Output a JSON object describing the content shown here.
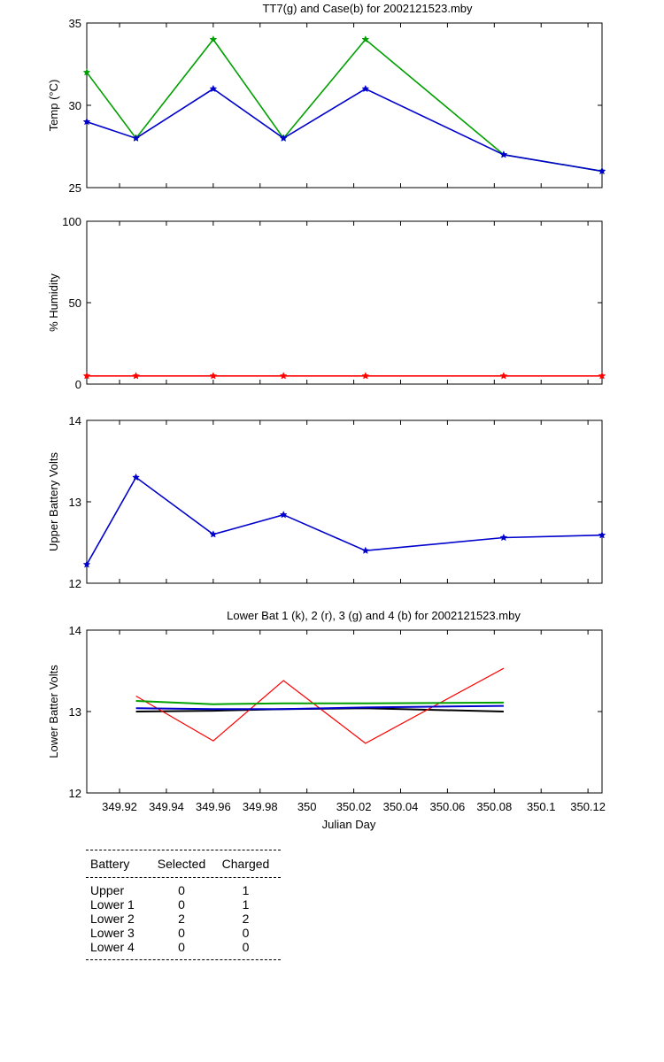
{
  "chart_data": [
    {
      "type": "line",
      "title": "TT7(g) and Case(b) for 2002121523.mby",
      "ylabel": "Temp (°C)",
      "xlim": [
        349.906,
        350.126
      ],
      "ylim": [
        25,
        35
      ],
      "yticks": [
        "25",
        "30",
        "35"
      ],
      "x": [
        349.906,
        349.927,
        349.96,
        349.99,
        350.025,
        350.084,
        350.126
      ],
      "series": [
        {
          "color": "#00a000",
          "marker": true,
          "values": [
            32,
            28,
            34,
            28,
            34,
            27,
            26
          ]
        },
        {
          "color": "#0000cc",
          "marker": true,
          "values": [
            29,
            28,
            31,
            28,
            31,
            27,
            26
          ]
        }
      ]
    },
    {
      "type": "line",
      "title": "",
      "ylabel": "% Humidity",
      "xlim": [
        349.906,
        350.126
      ],
      "ylim": [
        0,
        100
      ],
      "yticks": [
        "0",
        "50",
        "100"
      ],
      "x": [
        349.906,
        349.927,
        349.96,
        349.99,
        350.025,
        350.084,
        350.126
      ],
      "series": [
        {
          "color": "#ff0000",
          "marker": true,
          "values": [
            5,
            5,
            5,
            5,
            5,
            5,
            5
          ]
        }
      ]
    },
    {
      "type": "line",
      "title": "",
      "ylabel": "Upper Battery Volts",
      "xlim": [
        349.906,
        350.126
      ],
      "ylim": [
        12,
        14
      ],
      "yticks": [
        "12",
        "13",
        "14"
      ],
      "x": [
        349.906,
        349.927,
        349.96,
        349.99,
        350.025,
        350.084,
        350.126
      ],
      "series": [
        {
          "color": "#0000cc",
          "marker": true,
          "values": [
            12.23,
            13.3,
            12.6,
            12.84,
            12.4,
            12.56,
            12.59
          ]
        }
      ]
    },
    {
      "type": "line",
      "title": "Lower Bat 1 (k), 2 (r), 3 (g) and 4 (b) for 2002121523.mby",
      "ylabel": "Lower Batter Volts",
      "xlabel": "Julian Day",
      "xlim": [
        349.906,
        350.126
      ],
      "ylim": [
        12,
        14
      ],
      "yticks": [
        "12",
        "13",
        "14"
      ],
      "xticks": [
        349.92,
        349.94,
        349.96,
        349.98,
        350,
        350.02,
        350.04,
        350.06,
        350.08,
        350.1,
        350.12
      ],
      "xticklabels": [
        "349.92",
        "349.94",
        "349.96",
        "349.98",
        "350",
        "350.02",
        "350.04",
        "350.06",
        "350.08",
        "350.1",
        "350.12"
      ],
      "x": [
        349.927,
        349.96,
        349.99,
        350.025,
        350.084
      ],
      "series": [
        {
          "color": "#000000",
          "marker": false,
          "values": [
            13.0,
            13.01,
            13.03,
            13.04,
            13.0
          ]
        },
        {
          "color": "#ff0000",
          "marker": false,
          "values": [
            13.19,
            12.64,
            13.38,
            12.61,
            13.53
          ]
        },
        {
          "color": "#00a000",
          "marker": false,
          "values": [
            13.13,
            13.09,
            13.1,
            13.1,
            13.11
          ]
        },
        {
          "color": "#0000cc",
          "marker": false,
          "values": [
            13.04,
            13.03,
            13.03,
            13.05,
            13.07
          ]
        }
      ]
    }
  ],
  "battery_table": {
    "headers": {
      "battery": "Battery",
      "selected": "Selected",
      "charged": "Charged"
    },
    "rows": [
      {
        "battery": "Upper",
        "selected": "0",
        "charged": "1"
      },
      {
        "battery": "Lower 1",
        "selected": "0",
        "charged": "1"
      },
      {
        "battery": "Lower 2",
        "selected": "2",
        "charged": "2"
      },
      {
        "battery": "Lower 3",
        "selected": "0",
        "charged": "0"
      },
      {
        "battery": "Lower 4",
        "selected": "0",
        "charged": "0"
      }
    ]
  }
}
